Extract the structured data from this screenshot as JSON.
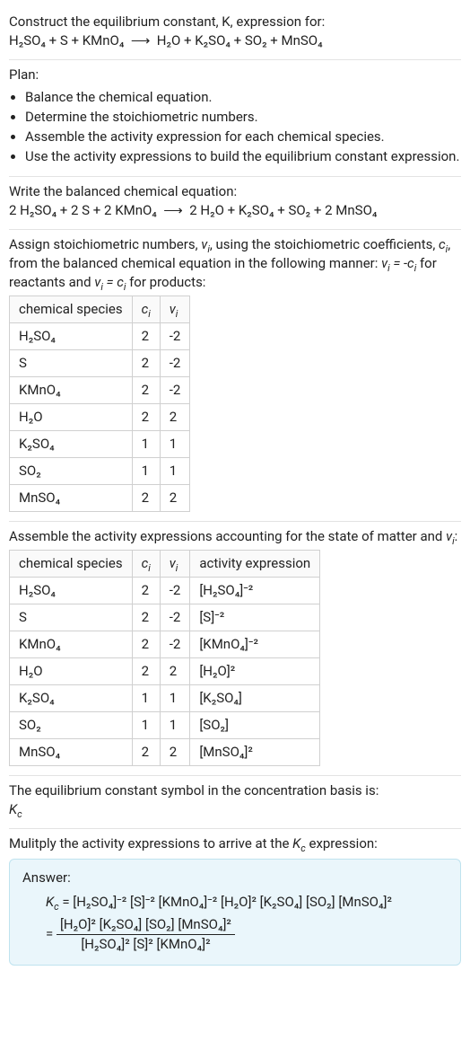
{
  "colors": {
    "text": "#222222",
    "border": "#e3e3e3",
    "table_border": "#d0d0d0",
    "answer_bg": "#eaf6fb",
    "answer_border": "#bfe3ef"
  },
  "s1": {
    "l1": "Construct the equilibrium constant, K, expression for:",
    "eq_lhs": "H₂SO₄ + S + KMnO₄",
    "arrow": "⟶",
    "eq_rhs": "H₂O + K₂SO₄ + SO₂ + MnSO₄"
  },
  "s2": {
    "title": "Plan:",
    "b1": "Balance the chemical equation.",
    "b2": "Determine the stoichiometric numbers.",
    "b3": "Assemble the activity expression for each chemical species.",
    "b4": "Use the activity expressions to build the equilibrium constant expression."
  },
  "s3": {
    "title": "Write the balanced chemical equation:",
    "eq_lhs": "2 H₂SO₄ + 2 S + 2 KMnO₄",
    "arrow": "⟶",
    "eq_rhs": "2 H₂O + K₂SO₄ + SO₂ + 2 MnSO₄"
  },
  "s4": {
    "intro_a": "Assign stoichiometric numbers, ",
    "intro_b": ", using the stoichiometric coefficients, ",
    "intro_c": ", from the balanced chemical equation in the following manner: ",
    "intro_d": " for reactants and ",
    "intro_e": " for products:",
    "h_species": "chemical species",
    "h_c": "cᵢ",
    "h_v": "νᵢ",
    "rows": [
      {
        "s": "H₂SO₄",
        "c": "2",
        "v": "-2"
      },
      {
        "s": "S",
        "c": "2",
        "v": "-2"
      },
      {
        "s": "KMnO₄",
        "c": "2",
        "v": "-2"
      },
      {
        "s": "H₂O",
        "c": "2",
        "v": "2"
      },
      {
        "s": "K₂SO₄",
        "c": "1",
        "v": "1"
      },
      {
        "s": "SO₂",
        "c": "1",
        "v": "1"
      },
      {
        "s": "MnSO₄",
        "c": "2",
        "v": "2"
      }
    ]
  },
  "s5": {
    "intro_a": "Assemble the activity expressions accounting for the state of matter and ",
    "intro_b": ":",
    "h_species": "chemical species",
    "h_c": "cᵢ",
    "h_v": "νᵢ",
    "h_act": "activity expression",
    "rows": [
      {
        "s": "H₂SO₄",
        "c": "2",
        "v": "-2",
        "a": "[H₂SO₄]⁻²"
      },
      {
        "s": "S",
        "c": "2",
        "v": "-2",
        "a": "[S]⁻²"
      },
      {
        "s": "KMnO₄",
        "c": "2",
        "v": "-2",
        "a": "[KMnO₄]⁻²"
      },
      {
        "s": "H₂O",
        "c": "2",
        "v": "2",
        "a": "[H₂O]²"
      },
      {
        "s": "K₂SO₄",
        "c": "1",
        "v": "1",
        "a": "[K₂SO₄]"
      },
      {
        "s": "SO₂",
        "c": "1",
        "v": "1",
        "a": "[SO₂]"
      },
      {
        "s": "MnSO₄",
        "c": "2",
        "v": "2",
        "a": "[MnSO₄]²"
      }
    ]
  },
  "s6": {
    "l1": "The equilibrium constant symbol in the concentration basis is:",
    "sym": "K",
    "sub": "c"
  },
  "s7": {
    "l1_a": "Mulitply the activity expressions to arrive at the ",
    "l1_b": " expression:",
    "answer_label": "Answer:",
    "kc": "K",
    "kc_sub": "c",
    "line1": " = [H₂SO₄]⁻² [S]⁻² [KMnO₄]⁻² [H₂O]² [K₂SO₄] [SO₂] [MnSO₄]²",
    "eq": " = ",
    "num": "[H₂O]² [K₂SO₄] [SO₂] [MnSO₄]²",
    "den": "[H₂SO₄]² [S]² [KMnO₄]²"
  }
}
